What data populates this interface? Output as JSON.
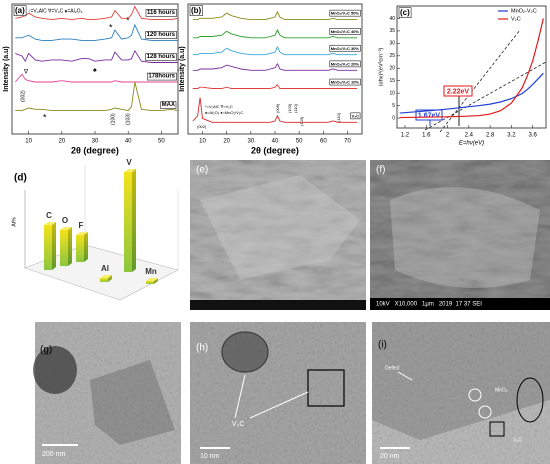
{
  "chart_data": [
    {
      "type": "line",
      "panel": "(a)",
      "xlabel": "2θ (degree)",
      "ylabel": "Intensity (a.u)",
      "xlim": [
        5,
        55
      ],
      "xticks": [
        10,
        20,
        30,
        40,
        50
      ],
      "ylim": [
        0,
        100
      ],
      "x": [
        6,
        8,
        9,
        10,
        12,
        14,
        17,
        20,
        23,
        26,
        28,
        30,
        33,
        35,
        36,
        38,
        40,
        41,
        42,
        44,
        47,
        50,
        53,
        55
      ],
      "series": [
        {
          "name": "116 hours",
          "color": "#e0403a",
          "values": [
            89,
            90,
            91,
            93,
            90,
            89,
            88,
            89,
            88,
            89,
            88,
            88,
            89,
            90,
            95,
            89,
            89,
            92,
            98,
            89,
            88,
            88,
            88,
            89
          ]
        },
        {
          "name": "120 hours",
          "color": "#2a7fc0",
          "values": [
            74,
            74,
            75,
            76,
            73,
            72,
            72,
            73,
            73,
            72,
            72,
            72,
            73,
            74,
            80,
            73,
            74,
            76,
            84,
            73,
            72,
            72,
            72,
            72
          ]
        },
        {
          "name": "128 hours",
          "color": "#7a2c9e",
          "values": [
            62,
            60,
            56,
            62,
            57,
            56,
            57,
            57,
            56,
            58,
            58,
            56,
            57,
            57,
            63,
            57,
            57,
            58,
            64,
            56,
            55,
            55,
            55,
            55
          ]
        },
        {
          "name": "178hours",
          "color": "#e8409a",
          "values": [
            40,
            46,
            42,
            41,
            40,
            40,
            40,
            41,
            40,
            40,
            40,
            40,
            40,
            40,
            41,
            40,
            40,
            40,
            40,
            40,
            40,
            40,
            40,
            40
          ]
        },
        {
          "name": "MAX",
          "color": "#8a8a1a",
          "values": [
            18,
            18,
            19,
            20,
            19,
            19,
            18,
            18,
            18,
            18,
            18,
            18,
            18,
            19,
            20,
            19,
            18,
            21,
            40,
            19,
            18,
            18,
            19,
            18
          ]
        }
      ],
      "legend_text": "↑=V₂AlC  ∇=V₂C  ♠=Al₂O₃",
      "annotations": [
        "(002)",
        "(100)",
        "(103)",
        "*",
        "*",
        "*",
        "∇",
        "♠"
      ]
    },
    {
      "type": "line",
      "panel": "(b)",
      "xlabel": "2θ (degree)",
      "ylabel": "Intensity (a.u)",
      "xlim": [
        4,
        76
      ],
      "xticks": [
        10,
        20,
        30,
        40,
        50,
        60,
        70
      ],
      "ylim": [
        0,
        100
      ],
      "x": [
        6,
        8,
        9,
        10,
        14,
        18,
        20,
        22,
        26,
        30,
        34,
        36,
        38,
        40,
        41,
        42,
        44,
        48,
        52,
        56,
        60,
        62,
        64,
        66,
        70,
        74
      ],
      "series": [
        {
          "name": "MnO₂/V₂C 50%",
          "color": "#8a8a1a",
          "values": [
            88,
            88,
            89,
            89,
            89,
            90,
            93,
            91,
            89,
            88,
            88,
            88,
            89,
            90,
            94,
            90,
            88,
            88,
            88,
            88,
            88,
            88,
            89,
            88,
            88,
            88
          ]
        },
        {
          "name": "MnO₂/V₂C 40%",
          "color": "#2ca02c",
          "values": [
            74,
            74,
            75,
            75,
            75,
            76,
            79,
            77,
            75,
            74,
            74,
            74,
            75,
            76,
            80,
            76,
            74,
            74,
            74,
            74,
            74,
            74,
            75,
            74,
            74,
            74
          ]
        },
        {
          "name": "MnO₂/V₂C 30%",
          "color": "#3aa7dd",
          "values": [
            61,
            61,
            62,
            62,
            62,
            63,
            66,
            64,
            62,
            61,
            61,
            61,
            62,
            63,
            67,
            63,
            61,
            61,
            61,
            61,
            61,
            61,
            62,
            61,
            61,
            61
          ]
        },
        {
          "name": "MnO₂/V₂C 20%",
          "color": "#7a2c9e",
          "values": [
            49,
            49,
            50,
            50,
            50,
            51,
            53,
            52,
            50,
            49,
            49,
            49,
            50,
            51,
            54,
            50,
            49,
            49,
            49,
            49,
            49,
            49,
            50,
            49,
            49,
            49
          ]
        },
        {
          "name": "MnO₂/V₂C 10%",
          "color": "#e0403a",
          "values": [
            35,
            35,
            36,
            36,
            35,
            35,
            36,
            35,
            35,
            35,
            35,
            35,
            35,
            36,
            38,
            35,
            35,
            35,
            35,
            35,
            35,
            35,
            35,
            35,
            35,
            35
          ]
        },
        {
          "name": "V₂C",
          "color": "#d62728",
          "values": [
            10,
            14,
            28,
            12,
            9,
            9,
            9,
            9,
            9,
            9,
            9,
            9,
            9,
            10,
            14,
            10,
            9,
            9,
            9,
            9,
            9,
            9,
            10,
            9,
            9,
            9
          ]
        }
      ],
      "legend_text": [
        "*=V₂AlC  ∇=V₂C",
        "♠=Al₂O₃  ♦=MnO₂/V₂C"
      ],
      "annotations": [
        "(002)",
        "(006)",
        "(103)",
        "(110)",
        "(103)",
        "(110)"
      ]
    },
    {
      "type": "line",
      "panel": "(c)",
      "xlabel": "E=hν(eV)",
      "ylabel": "(αhν)²(eV²cm⁻²)",
      "xlim": [
        1.05,
        3.85
      ],
      "xticks": [
        1.2,
        1.6,
        2.0,
        2.4,
        2.8,
        3.2,
        3.6
      ],
      "ylim": [
        -4,
        45
      ],
      "yticks": [
        0,
        5,
        10,
        15,
        20,
        25,
        30,
        35,
        40
      ],
      "x": [
        1.1,
        1.4,
        1.7,
        2.0,
        2.3,
        2.6,
        2.8,
        3.0,
        3.2,
        3.4,
        3.5,
        3.6,
        3.7,
        3.8
      ],
      "series": [
        {
          "name": "MnO₂-V₂C",
          "color": "#1f3fd6",
          "values": [
            2,
            2.5,
            3,
            3.6,
            4.3,
            5,
            5.6,
            6.5,
            7.8,
            9.8,
            11.5,
            13.5,
            15.7,
            18
          ]
        },
        {
          "name": "V₂C",
          "color": "#e01a1a",
          "values": [
            0.2,
            0.3,
            0.4,
            0.5,
            0.7,
            1,
            1.6,
            3,
            6,
            12,
            17,
            23,
            31,
            40
          ]
        }
      ],
      "annotations": [
        "1.67eV",
        "2.22eV"
      ]
    },
    {
      "type": "bar",
      "panel": "(d)",
      "ylabel": "At%",
      "ylim": [
        0,
        12
      ],
      "categories": [
        "C",
        "O",
        "F",
        "Al",
        "V",
        "Mn"
      ],
      "values": [
        4.5,
        3.6,
        2.7,
        0.4,
        10,
        0.3
      ]
    }
  ],
  "images": [
    {
      "panel": "(e)"
    },
    {
      "panel": "(f)",
      "caption": "10kV   X10,000   1μm   2019  17 37 SEI"
    },
    {
      "panel": "(g)",
      "scale": "200 nm"
    },
    {
      "panel": "(h)",
      "scale": "10 nm",
      "labels": [
        "V₂C"
      ]
    },
    {
      "panel": "(i)",
      "scale": "20 nm",
      "labels": [
        "Defect",
        "MnO₂",
        "V₂C"
      ]
    }
  ]
}
